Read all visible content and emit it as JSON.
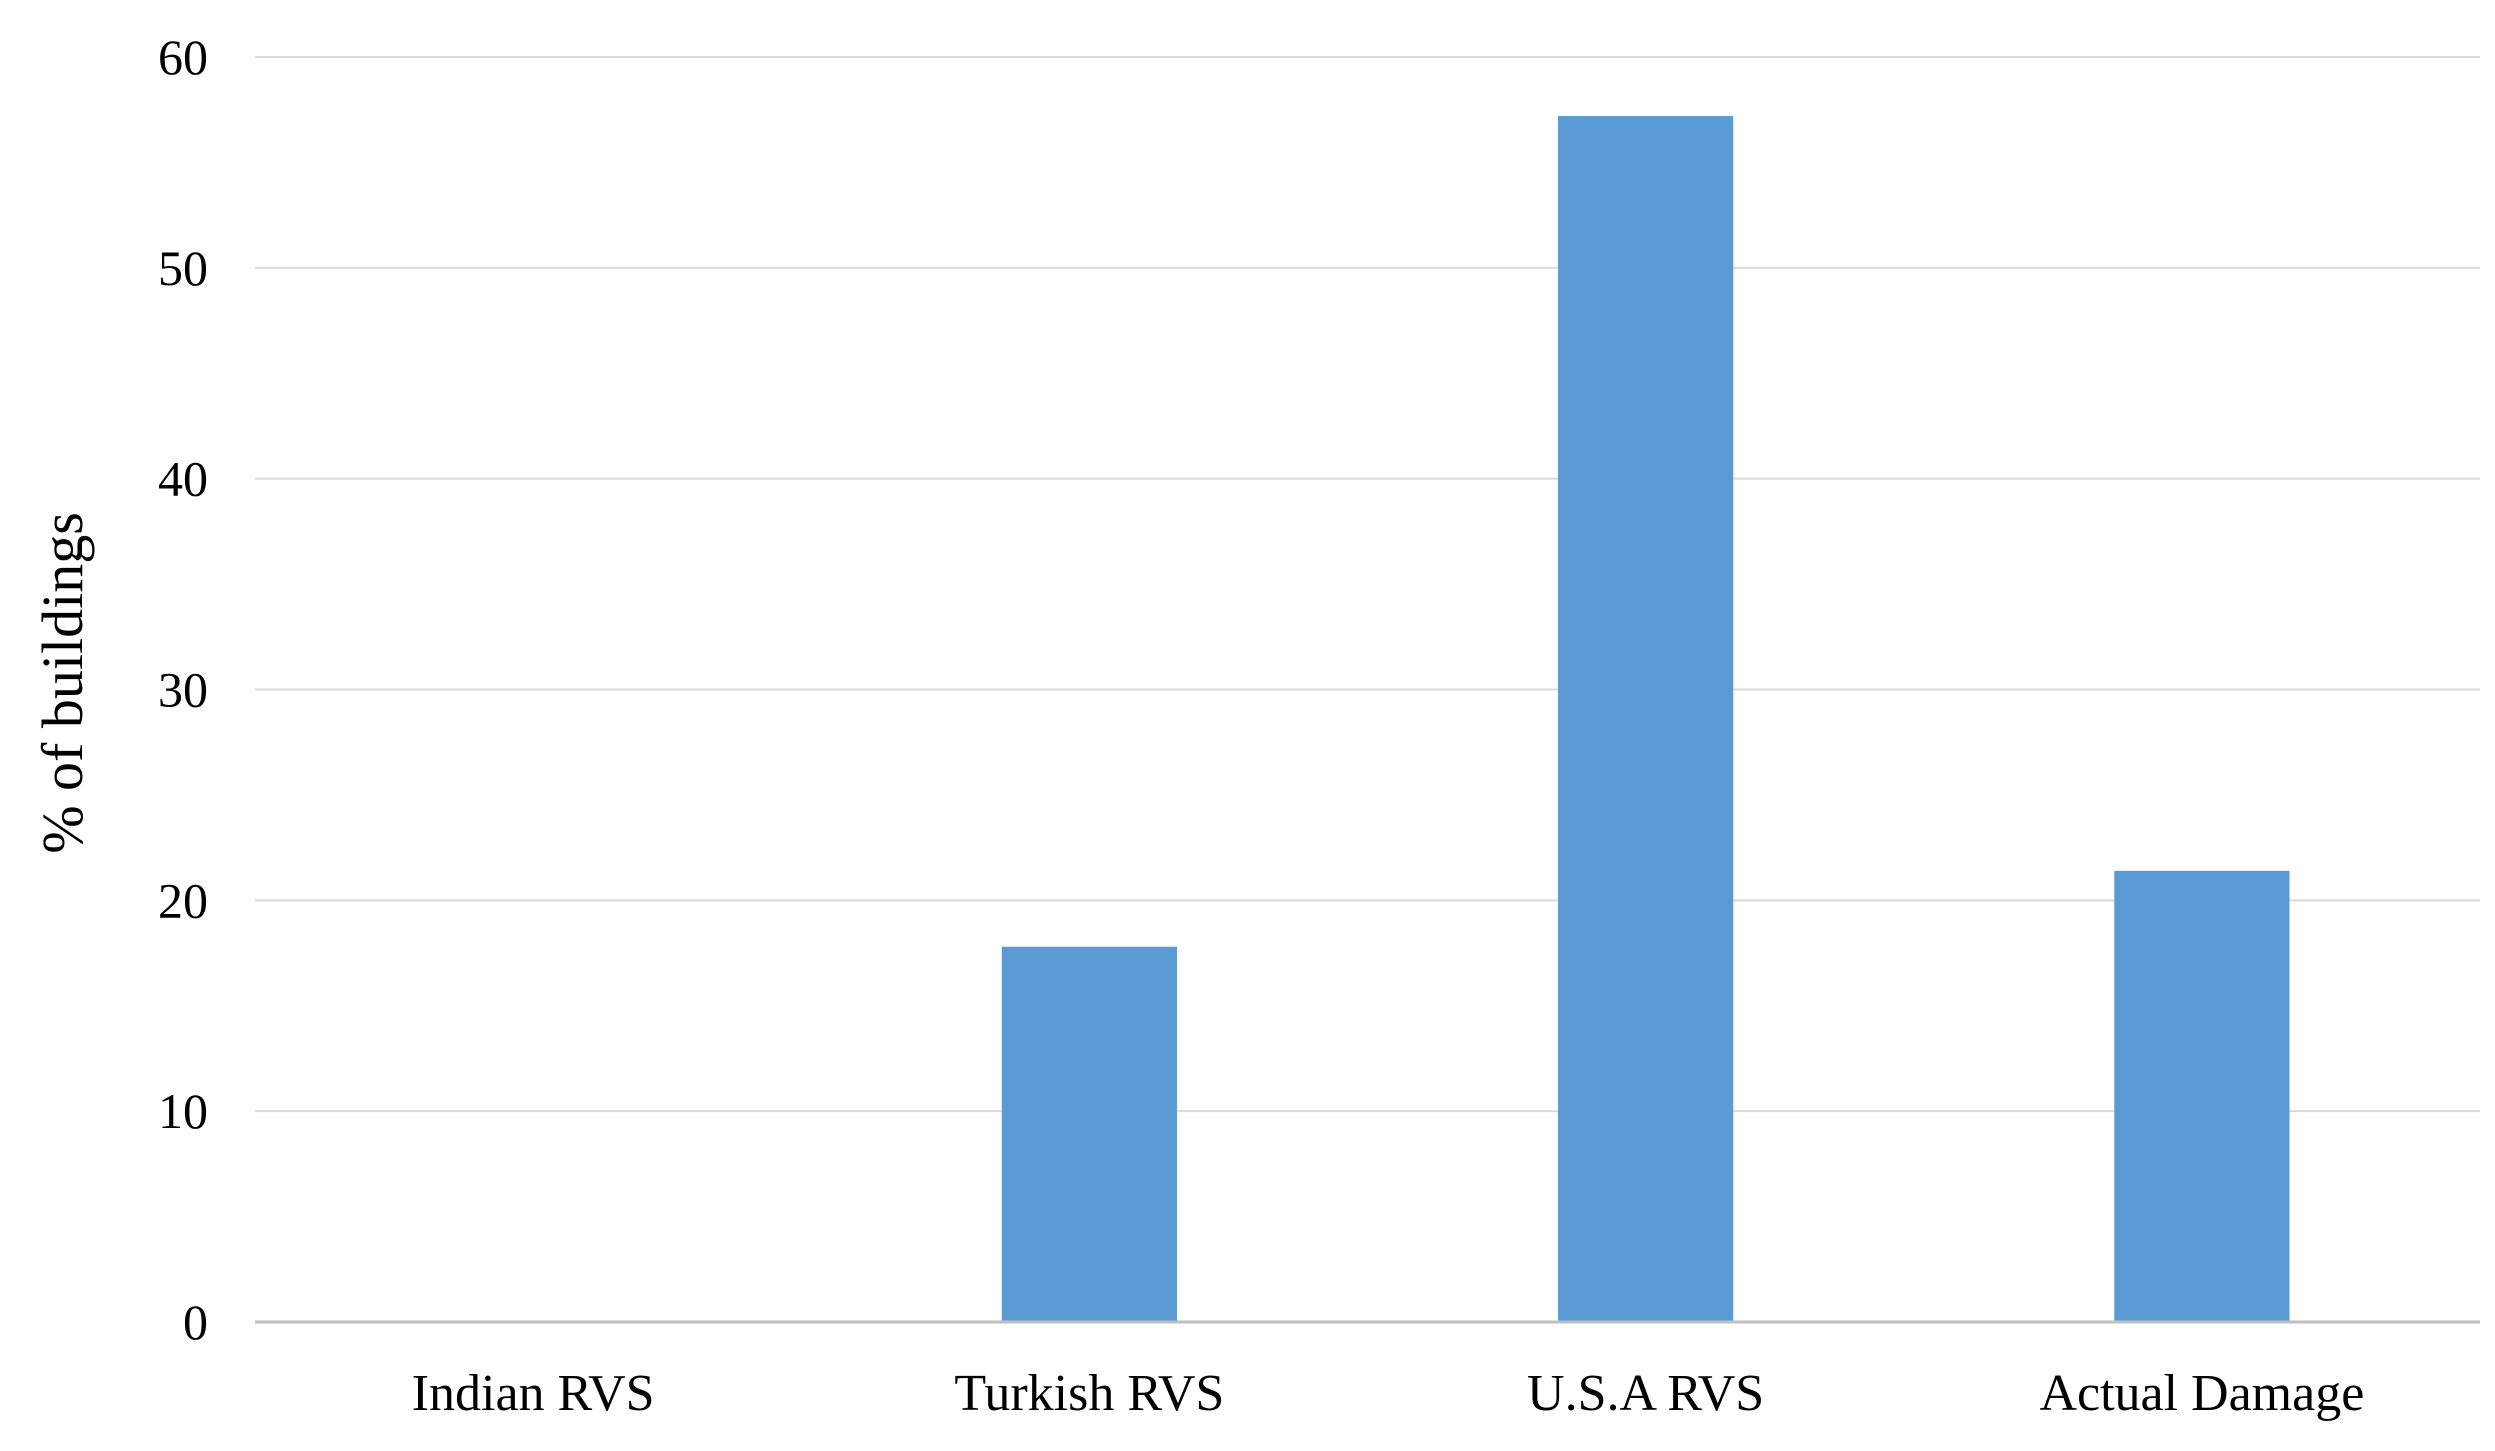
{
  "chart_data": {
    "type": "bar",
    "title": "",
    "xlabel": "",
    "ylabel": "% of buildings",
    "ylim": [
      0,
      60
    ],
    "yticks": [
      0,
      10,
      20,
      30,
      40,
      50,
      60
    ],
    "grid": true,
    "legend": "none",
    "categories": [
      "Indian RVS",
      "Turkish RVS",
      "U.S.A RVS",
      "Actual Damage"
    ],
    "values": [
      0,
      17.8,
      57.2,
      21.4
    ],
    "colors": {
      "bar": "#5b9bd5",
      "grid": "#d9d9d9",
      "axis": "#bfbfbf"
    }
  }
}
